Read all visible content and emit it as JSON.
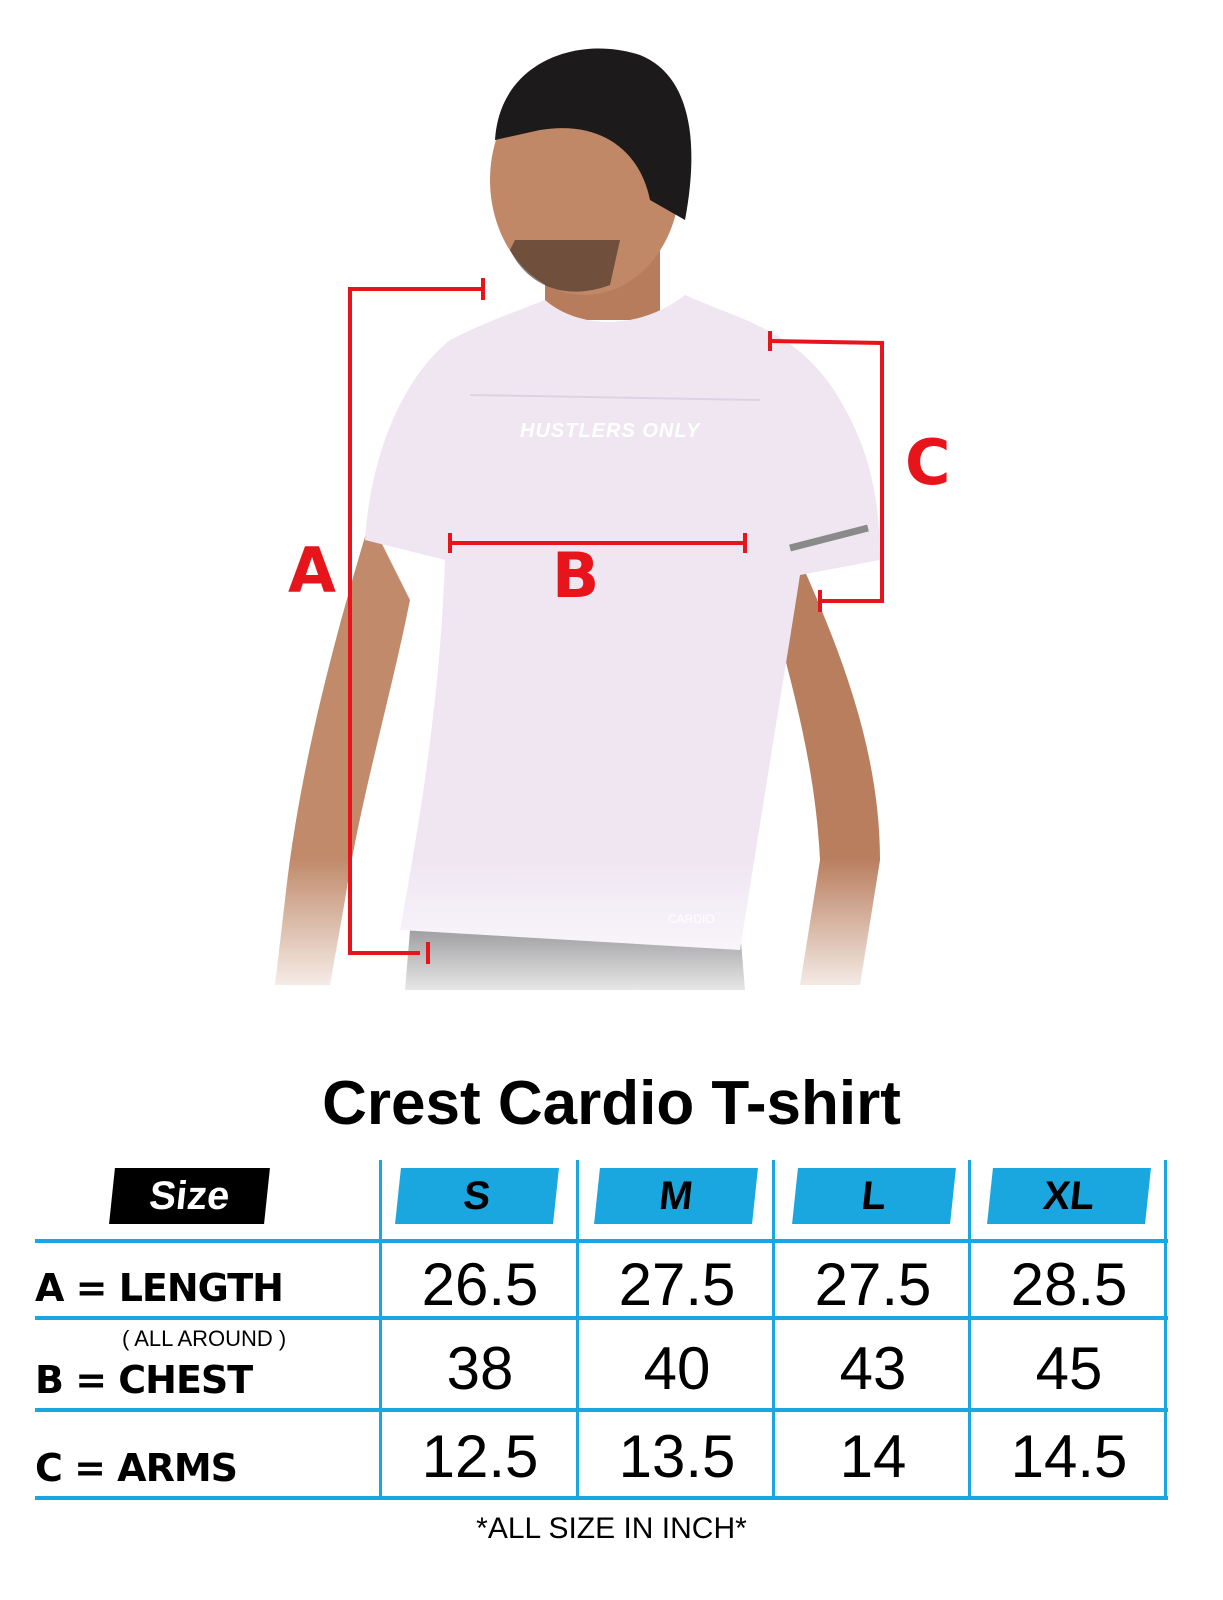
{
  "photo": {
    "shirt_print": "HUSTLERS ONLY",
    "shirt_logo": "CARDIO",
    "measure_labels": {
      "a": "A",
      "b": "B",
      "c": "C"
    },
    "measure_color": "#e8141b"
  },
  "title": "Crest Cardio T-shirt",
  "table": {
    "size_header": "Size",
    "sizes": [
      "S",
      "M",
      "L",
      "XL"
    ],
    "accent_color": "#1aa7df",
    "rows": [
      {
        "label": "A = LENGTH",
        "note": "",
        "values": [
          "26.5",
          "27.5",
          "27.5",
          "28.5"
        ]
      },
      {
        "label": "B = CHEST",
        "note": "( ALL AROUND )",
        "values": [
          "38",
          "40",
          "43",
          "45"
        ]
      },
      {
        "label": "C = ARMS",
        "note": "",
        "values": [
          "12.5",
          "13.5",
          "14",
          "14.5"
        ]
      }
    ]
  },
  "footnote": "*ALL SIZE IN INCH*"
}
